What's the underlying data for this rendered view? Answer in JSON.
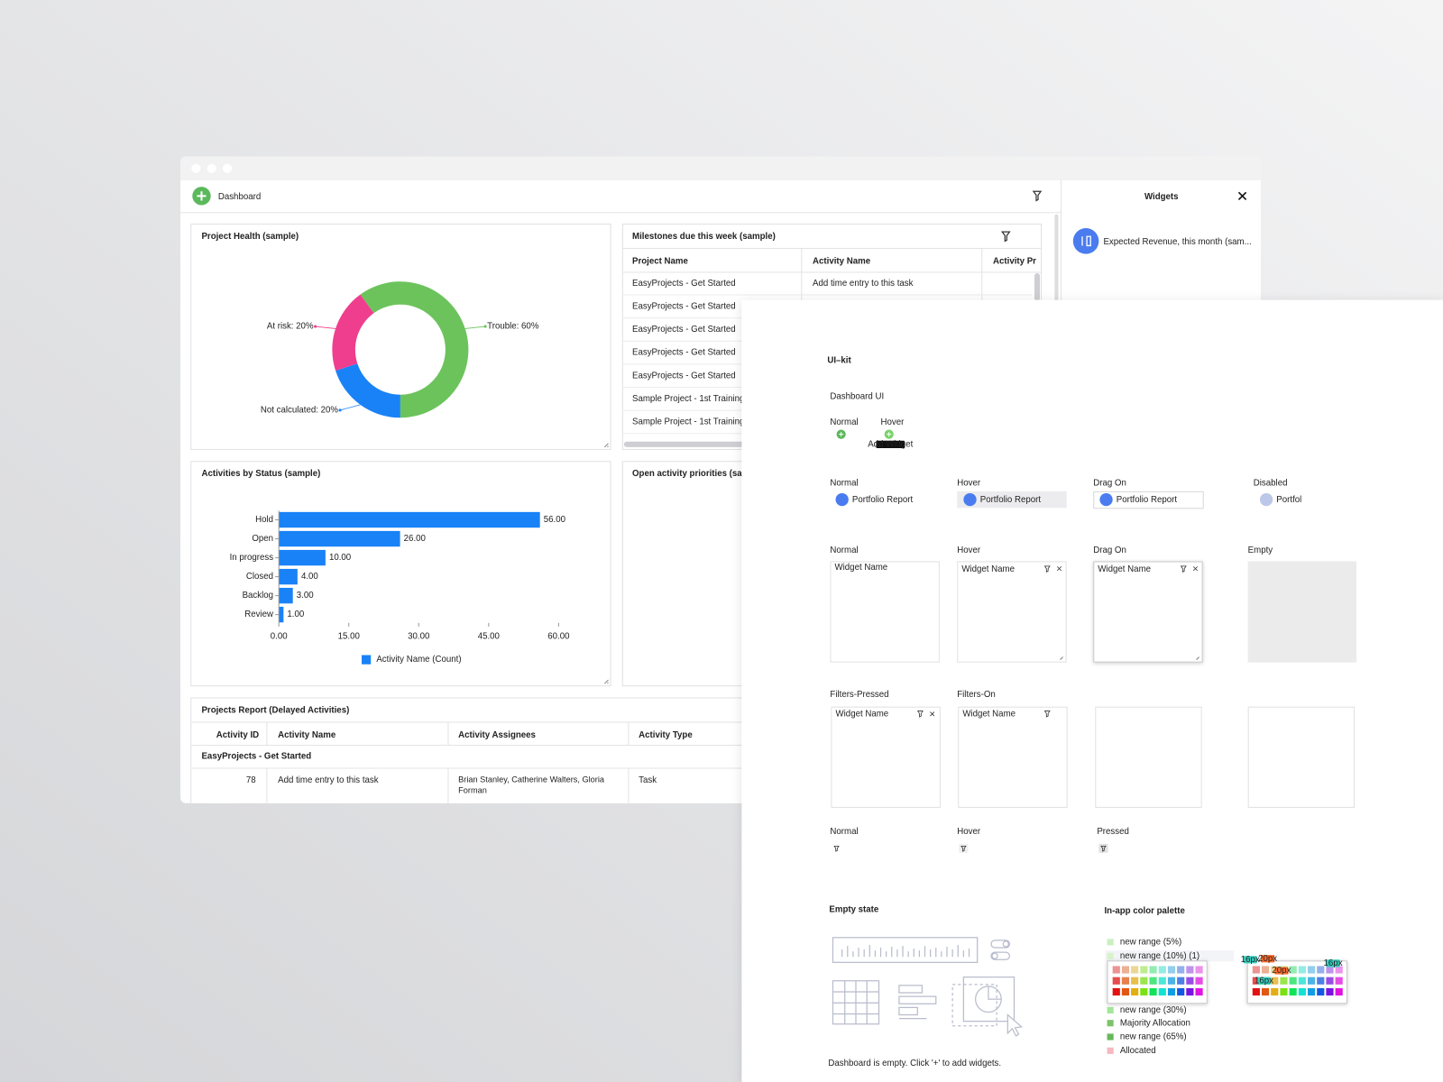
{
  "window": {
    "title": "Dashboard"
  },
  "widgets_panel": {
    "title": "Widgets",
    "items": [
      "Expected Revenue, this month (sam..."
    ]
  },
  "chart_data": [
    {
      "type": "pie",
      "donut": true,
      "title": "Project Health (sample)",
      "categories": [
        "Trouble",
        "Not calculated",
        "At risk"
      ],
      "values": [
        60,
        20,
        20
      ],
      "value_labels": [
        "Trouble: 60%",
        "Not calculated: 20%",
        "At risk: 20%"
      ],
      "colors": [
        "#6cc35c",
        "#1a82f7",
        "#ef3e8d"
      ]
    },
    {
      "type": "bar",
      "orientation": "horizontal",
      "title": "Activities by Status (sample)",
      "categories": [
        "Hold",
        "Open",
        "In progress",
        "Closed",
        "Backlog",
        "Review"
      ],
      "series": [
        {
          "name": "Activity Name (Count)",
          "color": "#1a82f7",
          "values": [
            56,
            26,
            10,
            4,
            3,
            1
          ],
          "value_labels": [
            "56.00",
            "26.00",
            "10.00",
            "4.00",
            "3.00",
            "1.00"
          ]
        }
      ],
      "xlim": [
        0,
        60
      ],
      "xticks": [
        {
          "value": 0,
          "label": "0.00"
        },
        {
          "value": 15,
          "label": "15.00"
        },
        {
          "value": 30,
          "label": "30.00"
        },
        {
          "value": 45,
          "label": "45.00"
        },
        {
          "value": 60,
          "label": "60.00"
        }
      ],
      "legend": "bottom"
    }
  ],
  "milestones": {
    "title": "Milestones due this week (sample)",
    "columns": [
      "Project Name",
      "Activity Name",
      "Activity Pr"
    ],
    "rows": [
      [
        "EasyProjects - Get Started",
        "Add time entry to this task"
      ],
      [
        "EasyProjects - Get Started"
      ],
      [
        "EasyProjects - Get Started"
      ],
      [
        "EasyProjects - Get Started"
      ],
      [
        "EasyProjects - Get Started"
      ],
      [
        "Sample Project - 1st Training"
      ],
      [
        "Sample Project - 1st Training"
      ]
    ]
  },
  "open_priorities": {
    "title": "Open activity priorities (sam"
  },
  "projects_report": {
    "title": "Projects Report (Delayed Activities)",
    "columns": [
      "Activity ID",
      "Activity Name",
      "Activity Assignees",
      "Activity Type"
    ],
    "group": "EasyProjects - Get Started",
    "rows": [
      [
        78,
        "Add time entry to this task",
        "Brian Stanley, Catherine Walters, Gloria Forman",
        "Task"
      ]
    ]
  },
  "ui_kit": {
    "title": "UI–kit",
    "subtitle": "Dashboard UI",
    "add_button": {
      "states": [
        "Normal",
        "Hover"
      ],
      "tooltip": "Add Widget"
    },
    "widget_item": {
      "states": [
        "Normal",
        "Hover",
        "Drag On",
        "Disabled"
      ],
      "label": "Portfolio Report"
    },
    "widget_card": {
      "states": [
        "Normal",
        "Hover",
        "Drag On",
        "Empty"
      ],
      "label": "Widget Name"
    },
    "filter_card": {
      "states": [
        "Filters-Pressed",
        "Filters-On"
      ]
    },
    "filter_button": {
      "states": [
        "Normal",
        "Hover",
        "Pressed"
      ]
    },
    "empty_state": {
      "title": "Empty state",
      "message": "Dashboard is empty. Click '+' to add widgets."
    },
    "palette": {
      "title": "In-app color palette",
      "ranges": [
        {
          "name": "new range (5%)",
          "color": "#c9f0c1"
        },
        {
          "name": "new range (10%) (1)",
          "color": "#d8f3cc"
        },
        {
          "name": "new range (30%)",
          "color": "#a4e69a"
        },
        {
          "name": "Majority Allocation",
          "color": "#7cc46c"
        },
        {
          "name": "new range (65%)",
          "color": "#67b858"
        },
        {
          "name": "Allocated",
          "color": "#f5b8c0"
        }
      ],
      "tags": [
        "16px",
        "20px",
        "20px",
        "16px",
        "16px"
      ]
    }
  }
}
